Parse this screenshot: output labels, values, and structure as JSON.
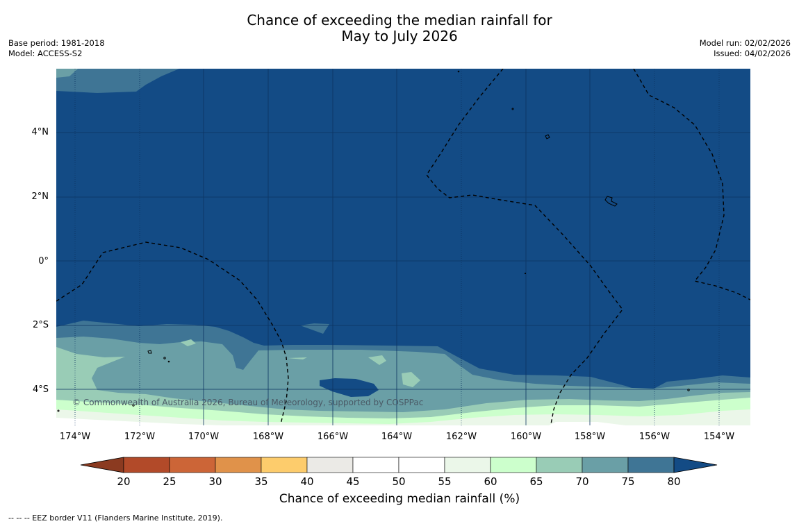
{
  "title": {
    "line1": "Chance of exceeding the median rainfall for",
    "line2": "May to July 2026"
  },
  "meta_left": {
    "base_period": "Base period: 1981-2018",
    "model": "Model: ACCESS-S2"
  },
  "meta_right": {
    "model_run": "Model run: 02/02/2026",
    "issued": "Issued: 04/02/2026"
  },
  "map": {
    "y_ticks": [
      "4°N",
      "2°N",
      "0°",
      "2°S",
      "4°S"
    ],
    "x_ticks": [
      "174°W",
      "172°W",
      "170°W",
      "168°W",
      "166°W",
      "164°W",
      "162°W",
      "160°W",
      "158°W",
      "156°W",
      "154°W"
    ],
    "attribution": "© Commonwealth of Australia 2026, Bureau of Meteorology, supported by COSPPac"
  },
  "colorbar": {
    "ticks": [
      "20",
      "25",
      "30",
      "35",
      "40",
      "45",
      "50",
      "55",
      "60",
      "65",
      "70",
      "75",
      "80"
    ],
    "bin_colors": [
      "#b24a29",
      "#cc6537",
      "#e0924a",
      "#fdcc6c",
      "#ebeae6",
      "#ffffff",
      "#ffffff",
      "#ebf7e9",
      "#ccffcc",
      "#99ccb6",
      "#6a9fa6",
      "#3f7595"
    ],
    "low_color": "#8b3a20",
    "high_color": "#134b85",
    "label": "Chance of exceeding median rainfall (%)"
  },
  "footnote": "--  --  -- EEZ border V11 (Flanders Marine Institute, 2019).",
  "colors": {
    "c80": "#134b85",
    "c75": "#3f7595",
    "c70": "#6a9fa6",
    "c65": "#99ccb6",
    "c60": "#ccffcc",
    "c55": "#ebf7e9",
    "c50": "#ffffff"
  }
}
